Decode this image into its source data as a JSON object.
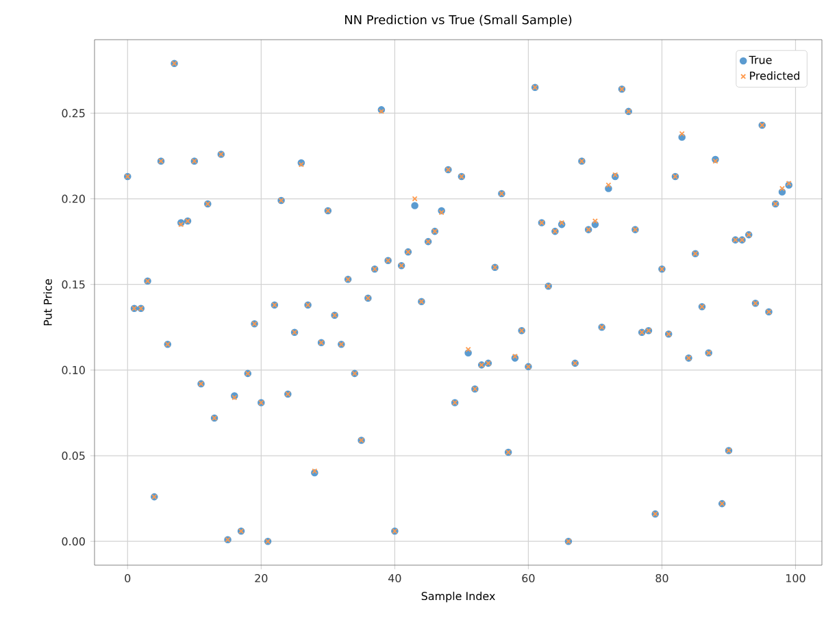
{
  "chart_data": {
    "type": "scatter",
    "title": "NN Prediction vs True (Small Sample)",
    "xlabel": "Sample Index",
    "ylabel": "Put Price",
    "x": [
      0,
      1,
      2,
      3,
      4,
      5,
      6,
      7,
      8,
      9,
      10,
      11,
      12,
      13,
      14,
      15,
      16,
      17,
      18,
      19,
      20,
      21,
      22,
      23,
      24,
      25,
      26,
      27,
      28,
      29,
      30,
      31,
      32,
      33,
      34,
      35,
      36,
      37,
      38,
      39,
      40,
      41,
      42,
      43,
      44,
      45,
      46,
      47,
      48,
      49,
      50,
      51,
      52,
      53,
      54,
      55,
      56,
      57,
      58,
      59,
      60,
      61,
      62,
      63,
      64,
      65,
      66,
      67,
      68,
      69,
      70,
      71,
      72,
      73,
      74,
      75,
      76,
      77,
      78,
      79,
      80,
      81,
      82,
      83,
      84,
      85,
      86,
      87,
      88,
      89,
      90,
      91,
      92,
      93,
      94,
      95,
      96,
      97,
      98,
      99
    ],
    "series": [
      {
        "name": "True",
        "color": "#5b9bd0",
        "marker": "circle",
        "values": [
          0.213,
          0.136,
          0.136,
          0.152,
          0.026,
          0.222,
          0.115,
          0.279,
          0.186,
          0.187,
          0.222,
          0.092,
          0.197,
          0.072,
          0.226,
          0.001,
          0.085,
          0.006,
          0.098,
          0.127,
          0.081,
          0.0,
          0.138,
          0.199,
          0.086,
          0.122,
          0.221,
          0.138,
          0.04,
          0.116,
          0.193,
          0.132,
          0.115,
          0.153,
          0.098,
          0.059,
          0.142,
          0.159,
          0.252,
          0.164,
          0.006,
          0.161,
          0.169,
          0.196,
          0.14,
          0.175,
          0.181,
          0.193,
          0.217,
          0.081,
          0.213,
          0.11,
          0.089,
          0.103,
          0.104,
          0.16,
          0.203,
          0.052,
          0.107,
          0.123,
          0.102,
          0.265,
          0.186,
          0.149,
          0.181,
          0.185,
          0.0,
          0.104,
          0.222,
          0.182,
          0.185,
          0.125,
          0.206,
          0.213,
          0.264,
          0.251,
          0.182,
          0.122,
          0.123,
          0.016,
          0.159,
          0.121,
          0.213,
          0.236,
          0.107,
          0.168,
          0.137,
          0.11,
          0.223,
          0.022,
          0.053,
          0.176,
          0.176,
          0.179,
          0.139,
          0.243,
          0.134,
          0.197,
          0.204,
          0.208
        ]
      },
      {
        "name": "Predicted",
        "color": "#ff9a4d",
        "marker": "cross",
        "values": [
          0.213,
          0.136,
          0.136,
          0.152,
          0.026,
          0.222,
          0.115,
          0.279,
          0.185,
          0.187,
          0.222,
          0.092,
          0.197,
          0.072,
          0.226,
          0.001,
          0.084,
          0.006,
          0.098,
          0.127,
          0.081,
          0.0,
          0.138,
          0.199,
          0.086,
          0.122,
          0.22,
          0.138,
          0.041,
          0.116,
          0.193,
          0.132,
          0.115,
          0.153,
          0.098,
          0.059,
          0.142,
          0.159,
          0.251,
          0.164,
          0.006,
          0.161,
          0.169,
          0.2,
          0.14,
          0.175,
          0.181,
          0.192,
          0.217,
          0.081,
          0.213,
          0.112,
          0.089,
          0.103,
          0.104,
          0.16,
          0.203,
          0.052,
          0.108,
          0.123,
          0.102,
          0.265,
          0.186,
          0.149,
          0.181,
          0.186,
          0.0,
          0.104,
          0.222,
          0.182,
          0.187,
          0.125,
          0.208,
          0.214,
          0.264,
          0.251,
          0.182,
          0.122,
          0.123,
          0.016,
          0.159,
          0.121,
          0.213,
          0.238,
          0.107,
          0.168,
          0.137,
          0.11,
          0.222,
          0.022,
          0.053,
          0.176,
          0.176,
          0.179,
          0.139,
          0.243,
          0.134,
          0.197,
          0.206,
          0.209
        ]
      }
    ],
    "xlim": [
      -4.95,
      103.95
    ],
    "xticks": [
      0,
      20,
      40,
      60,
      80,
      100
    ],
    "ylim": [
      -0.0139,
      0.2929
    ],
    "yticks": [
      {
        "value": 0,
        "label": "0.00"
      },
      {
        "value": 0.05,
        "label": "0.05"
      },
      {
        "value": 0.1,
        "label": "0.10"
      },
      {
        "value": 0.15,
        "label": "0.15"
      },
      {
        "value": 0.2,
        "label": "0.20"
      },
      {
        "value": 0.25,
        "label": "0.25"
      }
    ],
    "grid": true,
    "legend": "top right"
  }
}
